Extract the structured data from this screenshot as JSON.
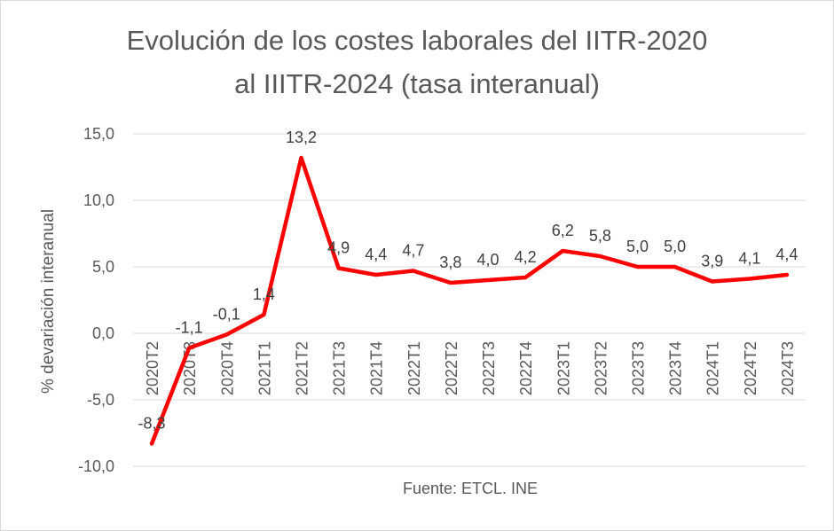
{
  "chart_data": {
    "type": "line",
    "title_line1": "Evolución de los costes laborales del IITR-2020",
    "title_line2": "al IIITR-2024 (tasa interanual)",
    "ylabel": "% devariación interanual",
    "source_note": "Fuente: ETCL. INE",
    "categories": [
      "2020T2",
      "2020T3",
      "2020T4",
      "2021T1",
      "2021T2",
      "2021T3",
      "2021T4",
      "2022T1",
      "2022T2",
      "2022T3",
      "2022T4",
      "2023T1",
      "2023T2",
      "2023T3",
      "2023T4",
      "2024T1",
      "2024T2",
      "2024T3"
    ],
    "values": [
      -8.3,
      -1.1,
      -0.1,
      1.4,
      13.2,
      4.9,
      4.4,
      4.7,
      3.8,
      4.0,
      4.2,
      6.2,
      5.8,
      5.0,
      5.0,
      3.9,
      4.1,
      4.4
    ],
    "value_labels": [
      "-8,3",
      "-1,1",
      "-0,1",
      "1,4",
      "13,2",
      "4,9",
      "4,4",
      "4,7",
      "3,8",
      "4,0",
      "4,2",
      "6,2",
      "5,8",
      "5,0",
      "5,0",
      "3,9",
      "4,1",
      "4,4"
    ],
    "y_ticks": [
      15,
      10,
      5,
      0,
      -5,
      -10
    ],
    "y_tick_labels": [
      "15,0",
      "10,0",
      "5,0",
      "0,0",
      "-5,0",
      "-10,0"
    ],
    "ylim": [
      -10,
      15
    ],
    "series_color": "#ff0000",
    "grid": true
  }
}
